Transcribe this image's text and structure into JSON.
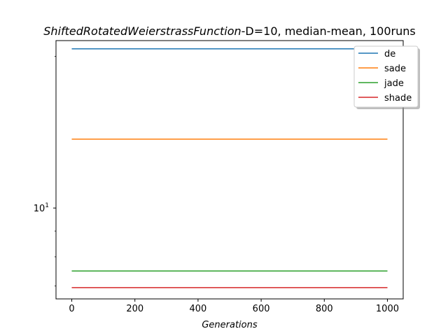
{
  "chart_data": {
    "type": "line",
    "title_italic": "ShiftedRotatedWeierstrassFunction",
    "title_rest": "-D=10, median-mean, 100runs",
    "xlabel": "Generations",
    "ylabel": "",
    "yscale": "log",
    "xlim": [
      -50,
      1050
    ],
    "ylim": [
      6.6,
      21.5
    ],
    "xticks": [
      0,
      200,
      400,
      600,
      800,
      1000
    ],
    "xtick_labels": [
      "0",
      "200",
      "400",
      "600",
      "800",
      "1000"
    ],
    "ytick_major": [
      10
    ],
    "ytick_major_base": "10",
    "ytick_major_exp": "1",
    "ytick_minor": [
      7,
      8,
      9,
      20
    ],
    "grid": false,
    "legend_position": "top-right",
    "x": [
      0,
      1000
    ],
    "series": [
      {
        "name": "de",
        "values": [
          20.7,
          20.7
        ],
        "color": "#1f77b4"
      },
      {
        "name": "sade",
        "values": [
          13.7,
          13.7
        ],
        "color": "#ff7f0e"
      },
      {
        "name": "jade",
        "values": [
          7.5,
          7.5
        ],
        "color": "#2ca02c"
      },
      {
        "name": "shade",
        "values": [
          6.95,
          6.95
        ],
        "color": "#d62728"
      }
    ]
  }
}
